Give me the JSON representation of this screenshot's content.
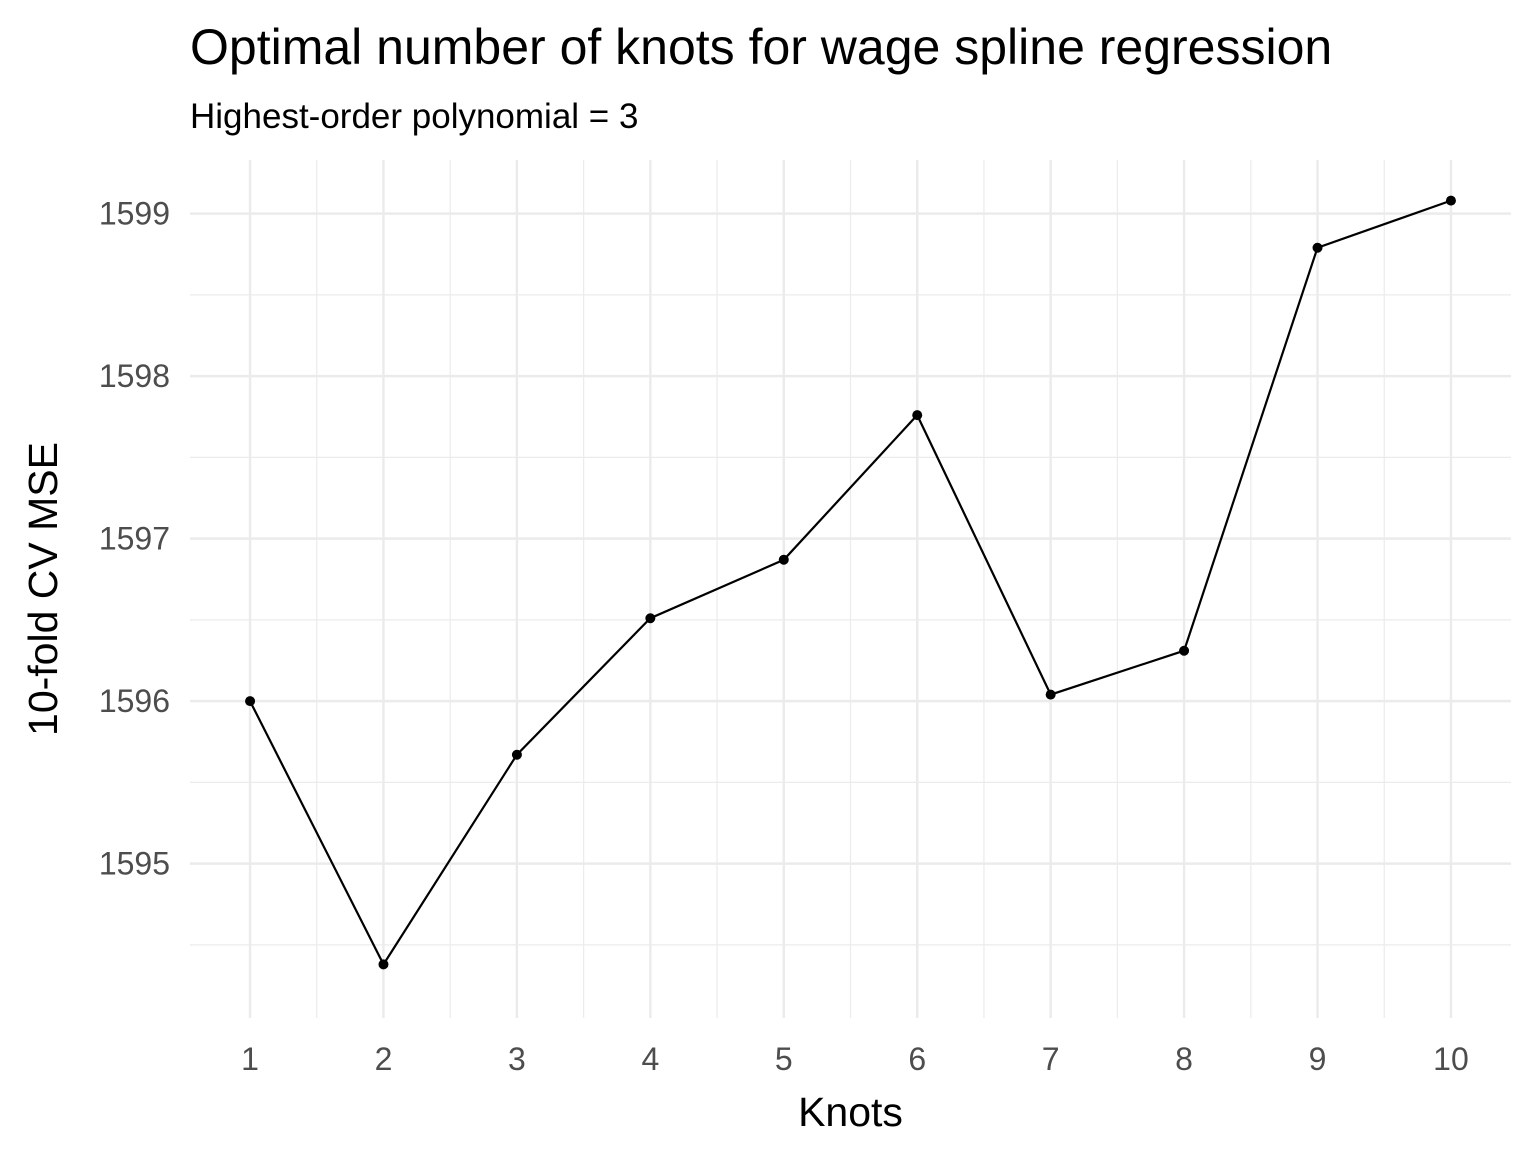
{
  "chart_data": {
    "type": "line",
    "title": "Optimal number of knots for wage spline regression",
    "subtitle": "Highest-order polynomial = 3",
    "xlabel": "Knots",
    "ylabel": "10-fold CV MSE",
    "x": [
      1,
      2,
      3,
      4,
      5,
      6,
      7,
      8,
      9,
      10
    ],
    "y": [
      1596.0,
      1594.38,
      1595.67,
      1596.51,
      1596.87,
      1597.76,
      1596.04,
      1596.31,
      1598.79,
      1599.08
    ],
    "x_ticks": [
      "1",
      "2",
      "3",
      "4",
      "5",
      "6",
      "7",
      "8",
      "9",
      "10"
    ],
    "y_ticks": [
      "1595",
      "1596",
      "1597",
      "1598",
      "1599"
    ],
    "xlim": [
      0.55,
      10.45
    ],
    "ylim": [
      1594.05,
      1599.33
    ],
    "grid": true,
    "line_color": "#000000",
    "point_color": "#000000",
    "grid_color": "#ebebeb"
  }
}
